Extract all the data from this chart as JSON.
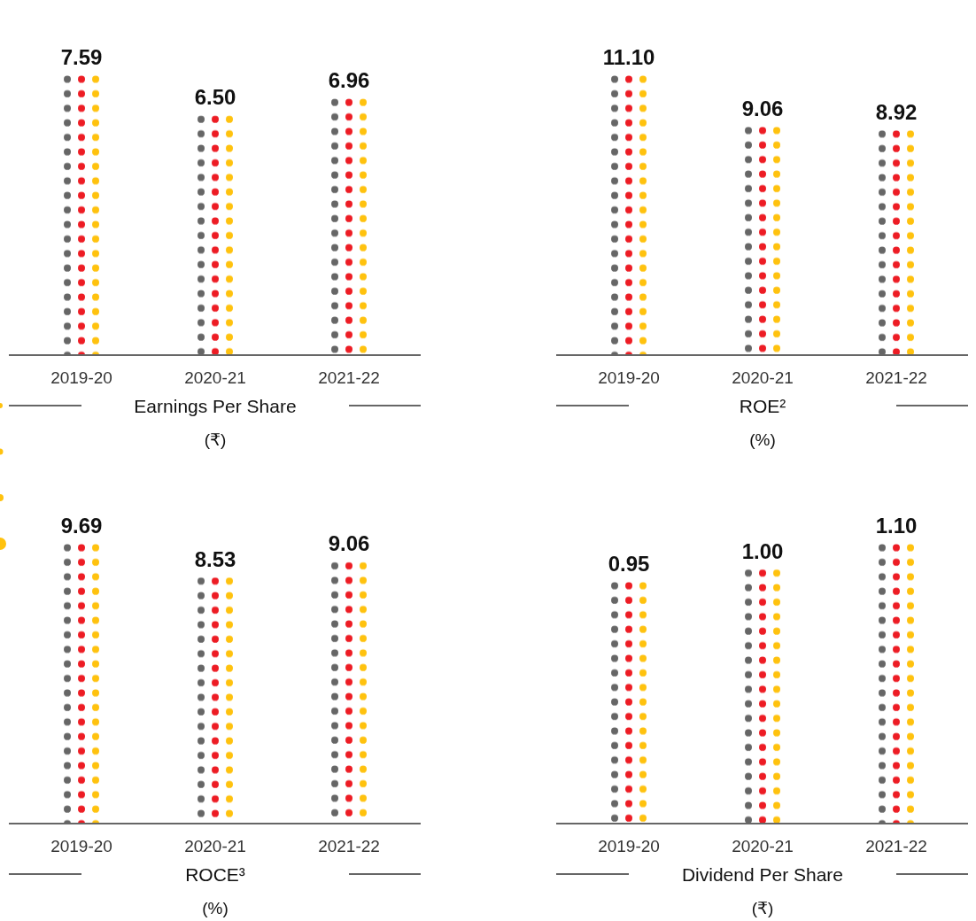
{
  "chart_data": [
    {
      "type": "bar",
      "title": "Earnings Per Share",
      "subtitle": "(₹)",
      "categories": [
        "2019-20",
        "2020-21",
        "2021-22"
      ],
      "series": [
        {
          "color": "#ed1c24",
          "values": [
            7.59,
            6.5,
            6.96
          ],
          "value_labels": [
            "7.59",
            "6.50",
            "6.96"
          ]
        }
      ]
    },
    {
      "type": "bar",
      "title": "ROE²",
      "subtitle": "(%)",
      "categories": [
        "2019-20",
        "2020-21",
        "2021-22"
      ],
      "series": [
        {
          "color": "#ed1c24",
          "values": [
            11.1,
            9.06,
            8.92
          ],
          "value_labels": [
            "11.10",
            "9.06",
            "8.92"
          ]
        }
      ]
    },
    {
      "type": "bar",
      "title": "ROCE³",
      "subtitle": "(%)",
      "categories": [
        "2019-20",
        "2020-21",
        "2021-22"
      ],
      "series": [
        {
          "color": "#ed1c24",
          "values": [
            9.69,
            8.53,
            9.06
          ],
          "value_labels": [
            "9.69",
            "8.53",
            "9.06"
          ]
        }
      ]
    },
    {
      "type": "bar",
      "title": "Dividend Per Share",
      "subtitle": "(₹)",
      "categories": [
        "2019-20",
        "2020-21",
        "2021-22"
      ],
      "series": [
        {
          "color": "#ed1c24",
          "values": [
            0.95,
            1.0,
            1.1
          ],
          "value_labels": [
            "0.95",
            "1.00",
            "1.10"
          ]
        }
      ]
    }
  ]
}
